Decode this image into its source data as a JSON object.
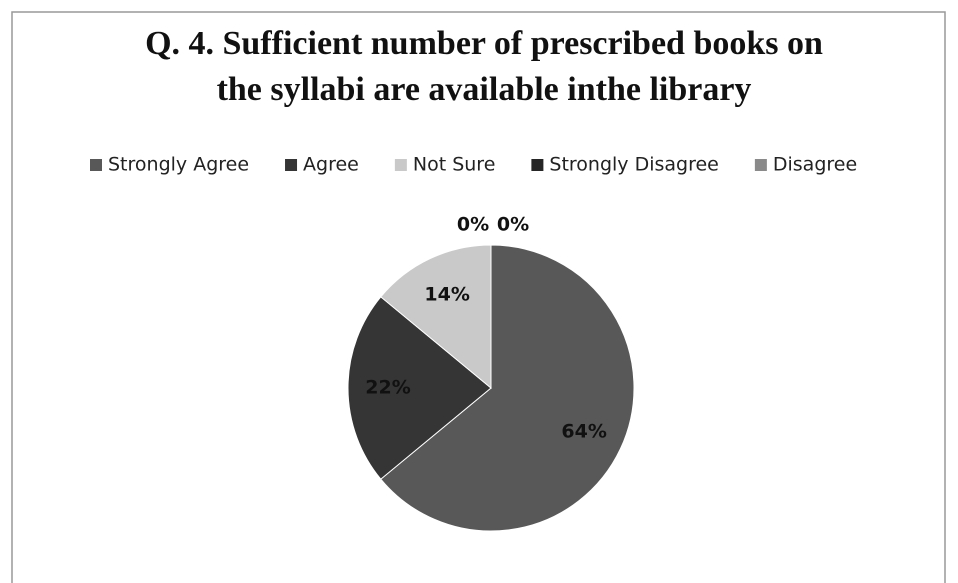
{
  "chart_data": {
    "type": "pie",
    "title": [
      "Q. 4. Sufficient number of prescribed books on",
      "the syllabi are available inthe library"
    ],
    "categories": [
      "Strongly Agree",
      "Agree",
      "Not Sure",
      "Strongly Disagree",
      "Disagree"
    ],
    "values": [
      64,
      22,
      14,
      0,
      0
    ],
    "value_labels": [
      "64%",
      "22%",
      "14%",
      "0%",
      "0%"
    ],
    "colors": [
      "#585858",
      "#353535",
      "#c9c9c9",
      "#262626",
      "#8a8a8a"
    ],
    "legend": "top"
  }
}
